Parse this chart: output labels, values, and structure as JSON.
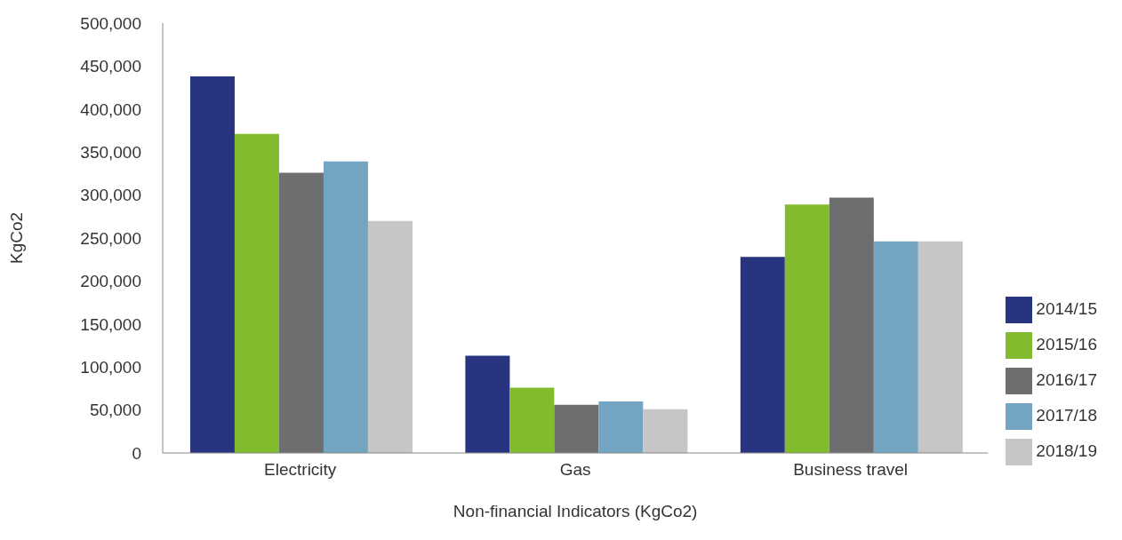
{
  "chart_data": {
    "type": "bar",
    "xlabel": "Non-financial Indicators (KgCo2)",
    "ylabel": "KgCo2",
    "categories": [
      "Electricity",
      "Gas",
      "Business travel"
    ],
    "series": [
      {
        "name": "2014/15",
        "color": "#283480",
        "values": [
          438000,
          113000,
          228000
        ]
      },
      {
        "name": "2015/16",
        "color": "#82bc2e",
        "values": [
          371000,
          76000,
          289000
        ]
      },
      {
        "name": "2016/17",
        "color": "#6d6e70",
        "values": [
          326000,
          56000,
          297000
        ]
      },
      {
        "name": "2017/18",
        "color": "#73a5c2",
        "values": [
          339000,
          60000,
          246000
        ]
      },
      {
        "name": "2018/19",
        "color": "#c6c6c6",
        "values": [
          270000,
          51000,
          246000
        ]
      }
    ],
    "ylim": [
      0,
      500000
    ],
    "yticks": [
      {
        "value": 0,
        "label": "0"
      },
      {
        "value": 50000,
        "label": "50,000"
      },
      {
        "value": 100000,
        "label": "100,000"
      },
      {
        "value": 150000,
        "label": "150,000"
      },
      {
        "value": 200000,
        "label": "200,000"
      },
      {
        "value": 250000,
        "label": "250,000"
      },
      {
        "value": 300000,
        "label": "300,000"
      },
      {
        "value": 350000,
        "label": "350,000"
      },
      {
        "value": 400000,
        "label": "400,000"
      },
      {
        "value": 450000,
        "label": "450,000"
      },
      {
        "value": 500000,
        "label": "500,000"
      }
    ],
    "grid": false,
    "legend": "right"
  }
}
